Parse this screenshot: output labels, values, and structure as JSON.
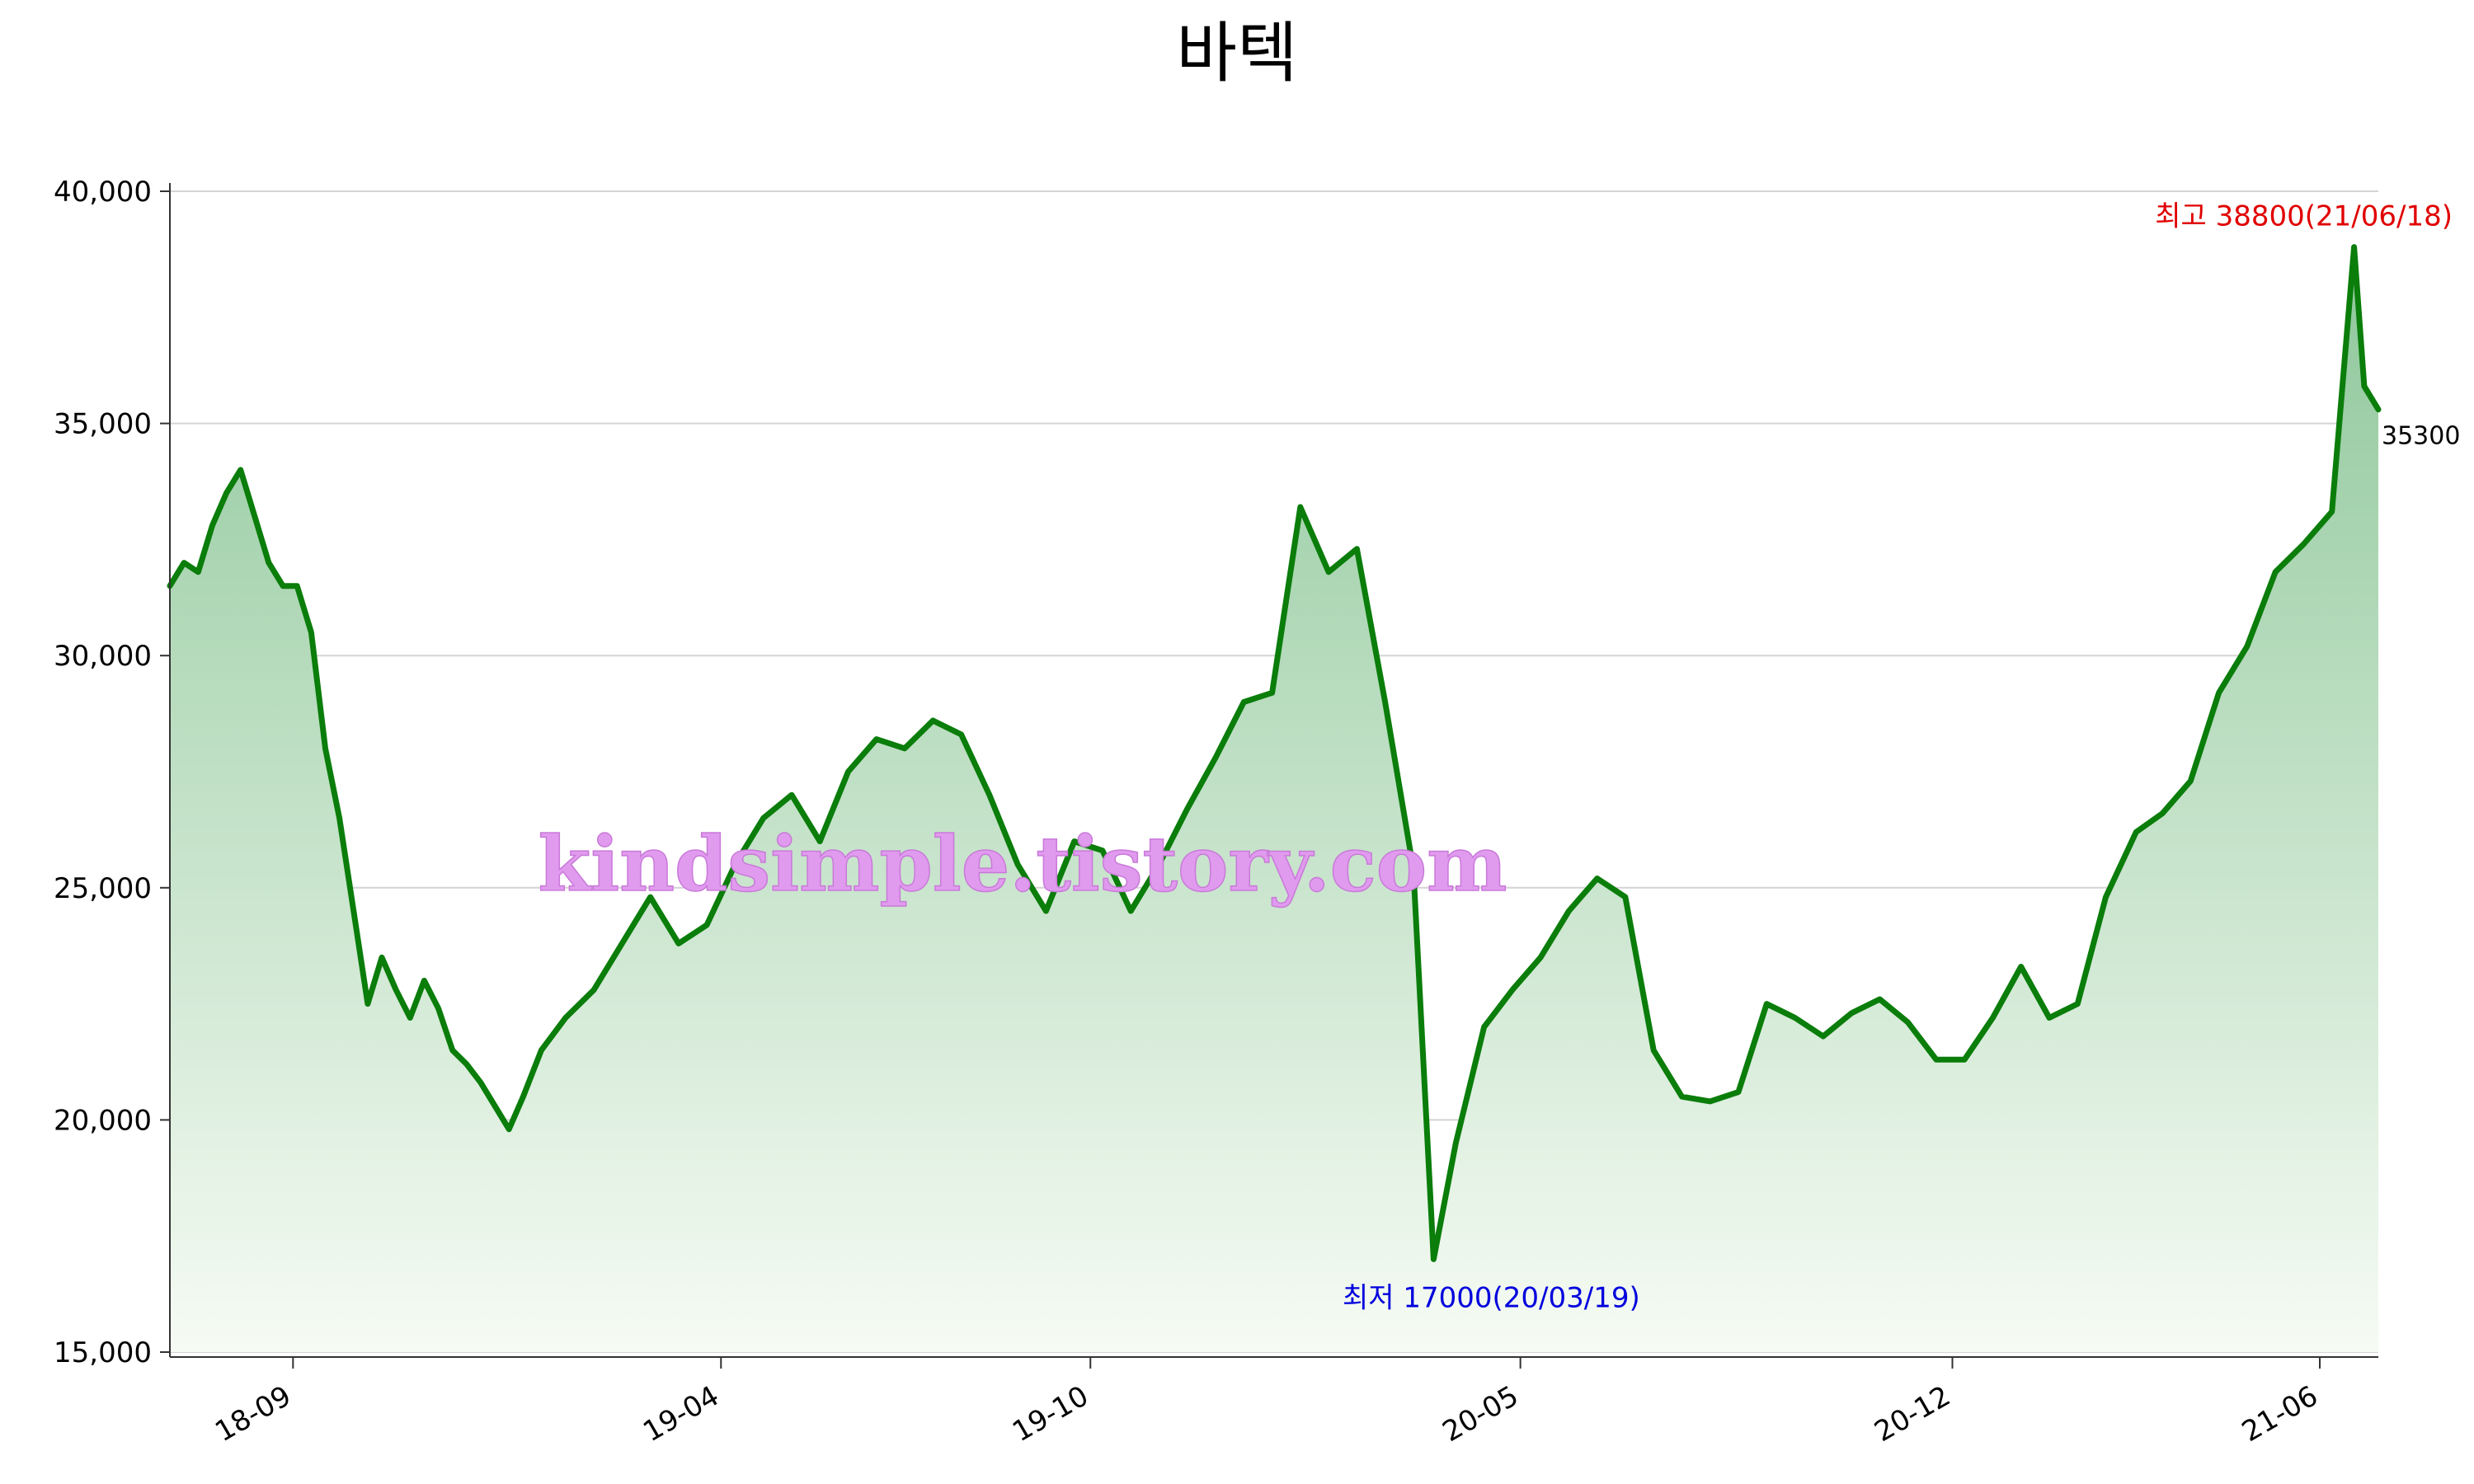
{
  "chart_data": {
    "type": "area",
    "title": "바텍",
    "xlabel": "",
    "ylabel": "",
    "ylim": [
      15000,
      40000
    ],
    "grid": true,
    "y_ticks": [
      15000,
      20000,
      25000,
      30000,
      35000,
      40000
    ],
    "y_tick_labels": [
      "15,000",
      "20,000",
      "25,000",
      "30,000",
      "35,000",
      "40,000"
    ],
    "x_ticks": [
      "2018-09-01",
      "2019-04-01",
      "2019-10-01",
      "2020-05-01",
      "2020-12-01",
      "2021-06-01"
    ],
    "x_tick_labels": [
      "18-09",
      "19-04",
      "19-10",
      "20-05",
      "20-12",
      "21-06"
    ],
    "x_range": [
      "2018-07-02",
      "2021-06-30"
    ],
    "line_color": "#0a7d0a",
    "fill_color_top": "#8ec79a",
    "fill_color_bottom": "#f6fbf4",
    "series": [
      {
        "x": [
          "2018-07-02",
          "2018-07-09",
          "2018-07-16",
          "2018-07-23",
          "2018-07-30",
          "2018-08-06",
          "2018-08-13",
          "2018-08-20",
          "2018-08-27",
          "2018-09-03",
          "2018-09-10",
          "2018-09-17",
          "2018-09-24",
          "2018-10-01",
          "2018-10-08",
          "2018-10-15",
          "2018-10-22",
          "2018-10-29",
          "2018-11-05",
          "2018-11-12",
          "2018-11-19",
          "2018-11-26",
          "2018-12-03",
          "2018-12-10",
          "2018-12-17",
          "2018-12-24",
          "2019-01-02",
          "2019-01-14",
          "2019-01-28",
          "2019-02-11",
          "2019-02-25",
          "2019-03-11",
          "2019-03-25",
          "2019-04-08",
          "2019-04-22",
          "2019-05-06",
          "2019-05-20",
          "2019-06-03",
          "2019-06-17",
          "2019-07-01",
          "2019-07-15",
          "2019-07-29",
          "2019-08-12",
          "2019-08-26",
          "2019-09-09",
          "2019-09-23",
          "2019-10-07",
          "2019-10-21",
          "2019-11-04",
          "2019-11-18",
          "2019-12-02",
          "2019-12-16",
          "2019-12-30",
          "2020-01-13",
          "2020-01-27",
          "2020-02-10",
          "2020-02-24",
          "2020-03-09",
          "2020-03-19",
          "2020-03-30",
          "2020-04-13",
          "2020-04-27",
          "2020-05-11",
          "2020-05-25",
          "2020-06-08",
          "2020-06-22",
          "2020-07-06",
          "2020-07-20",
          "2020-08-03",
          "2020-08-17",
          "2020-08-31",
          "2020-09-14",
          "2020-09-28",
          "2020-10-12",
          "2020-10-26",
          "2020-11-09",
          "2020-11-23",
          "2020-12-07",
          "2020-12-21",
          "2021-01-04",
          "2021-01-18",
          "2021-02-01",
          "2021-02-15",
          "2021-03-02",
          "2021-03-15",
          "2021-03-29",
          "2021-04-12",
          "2021-04-26",
          "2021-05-10",
          "2021-05-24",
          "2021-06-07",
          "2021-06-18",
          "2021-06-23",
          "2021-06-30"
        ],
        "y": [
          31500,
          32000,
          31800,
          32800,
          33500,
          34000,
          33000,
          32000,
          31500,
          31500,
          30500,
          28000,
          26500,
          24500,
          22500,
          23500,
          22800,
          22200,
          23000,
          22400,
          21500,
          21200,
          20800,
          20300,
          19800,
          20500,
          21500,
          22200,
          22800,
          23800,
          24800,
          23800,
          24200,
          25500,
          26500,
          27000,
          26000,
          27500,
          28200,
          28000,
          28600,
          28300,
          27000,
          25500,
          24500,
          26000,
          25800,
          24500,
          25500,
          26700,
          27800,
          29000,
          29200,
          33200,
          31800,
          32300,
          29000,
          25400,
          17000,
          19500,
          22000,
          22800,
          23500,
          24500,
          25200,
          24800,
          21500,
          20500,
          20400,
          20600,
          22500,
          22200,
          21800,
          22300,
          22600,
          22100,
          21300,
          21300,
          22200,
          23300,
          22200,
          22500,
          24800,
          26200,
          26600,
          27300,
          29200,
          30200,
          31800,
          32400,
          33100,
          38800,
          35800,
          35300
        ]
      }
    ],
    "annotations": {
      "max_label": "최고 38800(21/06/18)",
      "min_label": "최저 17000(20/03/19)",
      "last_label": "35300"
    },
    "watermark": "kindsimple.tistory.com"
  }
}
